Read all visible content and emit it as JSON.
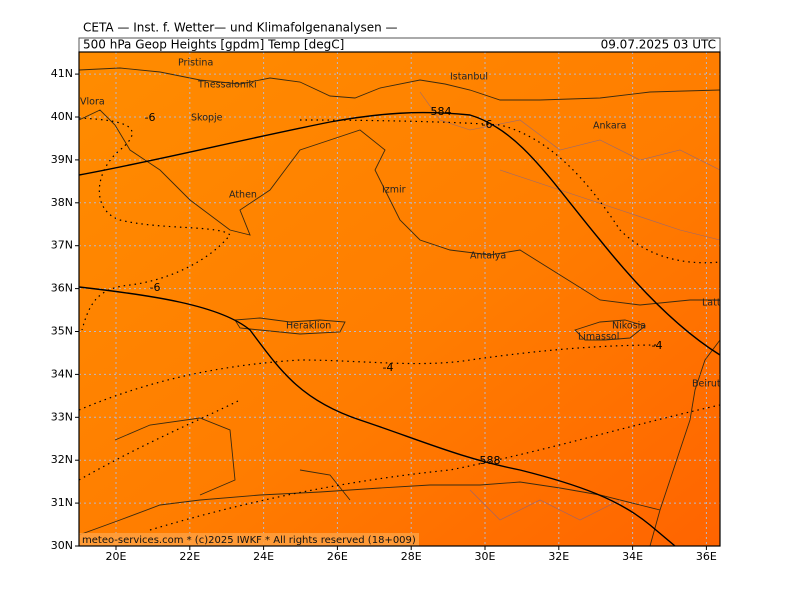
{
  "header": {
    "title": "CETA — Inst. f. Wetter— und Klimafolgenanalysen —",
    "field": "500 hPa Geop Heights [gpdm] Temp [degC]",
    "valid": "09.07.2025 03 UTC"
  },
  "map": {
    "lon_labels": [
      "20E",
      "22E",
      "24E",
      "26E",
      "28E",
      "30E",
      "32E",
      "34E",
      "36E"
    ],
    "lat_labels": [
      "30N",
      "31N",
      "32N",
      "33N",
      "34N",
      "35N",
      "36N",
      "37N",
      "38N",
      "39N",
      "40N",
      "41N"
    ],
    "cities": [
      "Pristina",
      "Thessaloniki",
      "Vlora",
      "Skopje",
      "Istanbul",
      "Ankara",
      "Izmir",
      "Athen",
      "Antalya",
      "Heraklion",
      "Nikosia",
      "Limassol",
      "Lattakia",
      "Beirut"
    ],
    "height_labels": [
      "584",
      "588"
    ],
    "temp_labels": [
      "-6",
      "-6",
      "-6",
      "-4",
      "-4"
    ]
  },
  "footer": "meteo-services.com * (c)2025 IWKF * All rights reserved (18+009)"
}
